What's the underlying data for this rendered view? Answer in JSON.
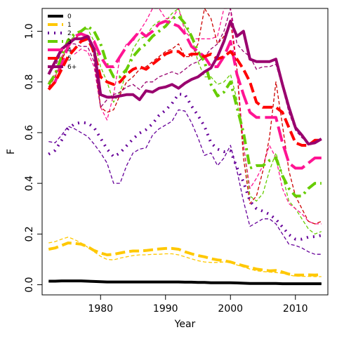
{
  "chart_data": {
    "type": "line",
    "title": "",
    "xlabel": "Year",
    "ylabel": "F",
    "xlim": [
      1971,
      2015
    ],
    "ylim": [
      -0.04,
      1.09
    ],
    "xticks": [
      1980,
      1990,
      2000,
      2010
    ],
    "yticks": [
      0.0,
      0.2,
      0.4,
      0.6,
      0.8,
      1.0
    ],
    "x": [
      1972,
      1973,
      1974,
      1975,
      1976,
      1977,
      1978,
      1979,
      1980,
      1981,
      1982,
      1983,
      1984,
      1985,
      1986,
      1987,
      1988,
      1989,
      1990,
      1991,
      1992,
      1993,
      1994,
      1995,
      1996,
      1997,
      1998,
      1999,
      2000,
      2001,
      2002,
      2003,
      2004,
      2005,
      2006,
      2007,
      2008,
      2009,
      2010,
      2011,
      2012,
      2013,
      2014
    ],
    "legend": {
      "position": "top-left",
      "entries": [
        "0",
        "1",
        "2",
        "3",
        "4",
        "5",
        "6+"
      ]
    },
    "series": [
      {
        "name": "0",
        "color": "#000000",
        "width": 4,
        "dash": "solid",
        "values": [
          0.014,
          0.014,
          0.015,
          0.015,
          0.015,
          0.015,
          0.014,
          0.013,
          0.012,
          0.011,
          0.011,
          0.011,
          0.011,
          0.011,
          0.011,
          0.011,
          0.011,
          0.011,
          0.011,
          0.011,
          0.011,
          0.01,
          0.01,
          0.009,
          0.009,
          0.008,
          0.008,
          0.008,
          0.008,
          0.007,
          0.006,
          0.005,
          0.005,
          0.005,
          0.005,
          0.005,
          0.004,
          0.004,
          0.004,
          0.004,
          0.004,
          0.004,
          0.004
        ]
      },
      {
        "name": "0 (thin)",
        "color": "#000000",
        "width": 1.3,
        "dash": "dashed",
        "values": [
          0.013,
          0.013,
          0.015,
          0.016,
          0.016,
          0.015,
          0.014,
          0.013,
          0.012,
          0.011,
          0.011,
          0.011,
          0.011,
          0.011,
          0.011,
          0.011,
          0.011,
          0.011,
          0.011,
          0.011,
          0.011,
          0.01,
          0.01,
          0.009,
          0.009,
          0.008,
          0.008,
          0.008,
          0.008,
          0.007,
          0.006,
          0.005,
          0.005,
          0.005,
          0.005,
          0.005,
          0.004,
          0.004,
          0.004,
          0.004,
          0.004,
          0.004,
          0.004
        ]
      },
      {
        "name": "1",
        "color": "#ffc800",
        "width": 4,
        "dash": "dashed",
        "values": [
          0.14,
          0.145,
          0.155,
          0.165,
          0.163,
          0.16,
          0.15,
          0.135,
          0.125,
          0.118,
          0.12,
          0.125,
          0.13,
          0.133,
          0.133,
          0.135,
          0.138,
          0.141,
          0.143,
          0.143,
          0.14,
          0.13,
          0.122,
          0.115,
          0.11,
          0.103,
          0.098,
          0.095,
          0.09,
          0.082,
          0.075,
          0.068,
          0.062,
          0.058,
          0.055,
          0.056,
          0.05,
          0.042,
          0.038,
          0.038,
          0.039,
          0.038,
          0.04
        ]
      },
      {
        "name": "1 (thin)",
        "color": "#ffc800",
        "width": 1.3,
        "dash": "dashed",
        "values": [
          0.165,
          0.17,
          0.18,
          0.188,
          0.178,
          0.165,
          0.148,
          0.13,
          0.112,
          0.1,
          0.098,
          0.105,
          0.11,
          0.115,
          0.118,
          0.118,
          0.12,
          0.12,
          0.122,
          0.122,
          0.118,
          0.11,
          0.102,
          0.095,
          0.09,
          0.088,
          0.088,
          0.09,
          0.088,
          0.078,
          0.07,
          0.062,
          0.055,
          0.052,
          0.05,
          0.048,
          0.045,
          0.038,
          0.034,
          0.033,
          0.033,
          0.032,
          0.032
        ]
      },
      {
        "name": "2",
        "color": "#660099",
        "width": 4,
        "dash": "dotted",
        "values": [
          0.515,
          0.53,
          0.57,
          0.615,
          0.635,
          0.64,
          0.638,
          0.62,
          0.578,
          0.535,
          0.505,
          0.52,
          0.548,
          0.575,
          0.598,
          0.612,
          0.635,
          0.668,
          0.688,
          0.715,
          0.752,
          0.75,
          0.705,
          0.668,
          0.625,
          0.56,
          0.535,
          0.525,
          0.528,
          0.462,
          0.405,
          0.33,
          0.3,
          0.29,
          0.278,
          0.258,
          0.228,
          0.198,
          0.18,
          0.18,
          0.188,
          0.19,
          0.195
        ]
      },
      {
        "name": "2 (thin)",
        "color": "#660099",
        "width": 1.3,
        "dash": "dashed",
        "values": [
          0.565,
          0.56,
          0.59,
          0.625,
          0.615,
          0.6,
          0.585,
          0.555,
          0.52,
          0.48,
          0.4,
          0.4,
          0.47,
          0.52,
          0.535,
          0.54,
          0.59,
          0.615,
          0.63,
          0.645,
          0.69,
          0.685,
          0.64,
          0.58,
          0.51,
          0.52,
          0.47,
          0.5,
          0.55,
          0.45,
          0.33,
          0.23,
          0.245,
          0.26,
          0.26,
          0.24,
          0.2,
          0.16,
          0.155,
          0.145,
          0.13,
          0.12,
          0.12
        ]
      },
      {
        "name": "3",
        "color": "#66cc00",
        "width": 4,
        "dash": "dashdot",
        "values": [
          0.79,
          0.83,
          0.9,
          0.965,
          0.99,
          1.0,
          1.02,
          1.0,
          0.95,
          0.87,
          0.82,
          0.82,
          0.85,
          0.9,
          0.93,
          0.95,
          0.98,
          1.0,
          1.02,
          1.05,
          1.06,
          1.03,
          0.98,
          0.92,
          0.88,
          0.79,
          0.745,
          0.76,
          0.8,
          0.7,
          0.6,
          0.46,
          0.47,
          0.47,
          0.49,
          0.5,
          0.43,
          0.38,
          0.35,
          0.35,
          0.38,
          0.4,
          0.4
        ]
      },
      {
        "name": "3 (thin)",
        "color": "#66cc00",
        "width": 1.3,
        "dash": "dashed",
        "values": [
          0.8,
          0.82,
          0.89,
          0.96,
          0.98,
          1.0,
          1.01,
          0.96,
          0.86,
          0.8,
          0.72,
          0.76,
          0.84,
          0.93,
          0.97,
          0.98,
          1.02,
          1.04,
          1.04,
          1.07,
          1.09,
          1.02,
          0.98,
          0.88,
          0.82,
          0.82,
          0.79,
          0.8,
          0.83,
          0.73,
          0.55,
          0.35,
          0.33,
          0.36,
          0.45,
          0.52,
          0.43,
          0.33,
          0.3,
          0.26,
          0.22,
          0.2,
          0.21
        ]
      },
      {
        "name": "4",
        "color": "#ff1493",
        "width": 4,
        "dash": "longdash",
        "values": [
          0.77,
          0.8,
          0.87,
          0.94,
          0.98,
          0.99,
          0.98,
          0.96,
          0.9,
          0.86,
          0.86,
          0.9,
          0.94,
          0.97,
          1.0,
          0.98,
          1.0,
          1.03,
          1.04,
          1.03,
          1.02,
          0.99,
          0.94,
          0.92,
          0.9,
          0.86,
          0.86,
          0.9,
          0.96,
          0.83,
          0.75,
          0.68,
          0.66,
          0.66,
          0.66,
          0.66,
          0.56,
          0.48,
          0.46,
          0.46,
          0.48,
          0.5,
          0.5
        ]
      },
      {
        "name": "4 (thin)",
        "color": "#ff1493",
        "width": 1.3,
        "dash": "dashed",
        "values": [
          0.8,
          0.83,
          0.9,
          0.94,
          0.91,
          0.93,
          0.92,
          0.86,
          0.7,
          0.65,
          0.75,
          0.9,
          0.95,
          0.96,
          1.0,
          1.04,
          1.09,
          1.09,
          1.05,
          1.05,
          1.09,
          1.0,
          0.97,
          0.97,
          0.97,
          0.97,
          0.98,
          1.09,
          1.09,
          0.85,
          0.55,
          0.38,
          0.42,
          0.47,
          0.55,
          0.5,
          0.38,
          0.32,
          0.3,
          0.28,
          0.25,
          0.24,
          0.24
        ]
      },
      {
        "name": "5",
        "color": "#ff0000",
        "width": 4,
        "dash": "dashed",
        "values": [
          0.77,
          0.8,
          0.85,
          0.9,
          0.93,
          0.96,
          0.97,
          0.92,
          0.82,
          0.8,
          0.79,
          0.8,
          0.83,
          0.85,
          0.86,
          0.85,
          0.87,
          0.89,
          0.91,
          0.92,
          0.92,
          0.9,
          0.91,
          0.91,
          0.9,
          0.91,
          0.89,
          0.9,
          0.92,
          0.89,
          0.85,
          0.8,
          0.72,
          0.7,
          0.7,
          0.7,
          0.68,
          0.62,
          0.56,
          0.55,
          0.55,
          0.57,
          0.57
        ]
      },
      {
        "name": "5 (thin)",
        "color": "#cc0000",
        "width": 1.3,
        "dash": "dashed",
        "values": [
          0.78,
          0.82,
          0.88,
          0.95,
          0.97,
          0.99,
          0.98,
          0.9,
          0.7,
          0.68,
          0.69,
          0.75,
          0.8,
          0.82,
          0.85,
          0.86,
          0.88,
          0.9,
          0.92,
          0.93,
          0.95,
          0.9,
          0.9,
          0.95,
          1.09,
          1.05,
          0.95,
          0.98,
          1.04,
          0.85,
          0.5,
          0.32,
          0.35,
          0.45,
          0.58,
          0.8,
          0.63,
          0.45,
          0.35,
          0.3,
          0.25,
          0.24,
          0.25
        ]
      },
      {
        "name": "6+",
        "color": "#99006e",
        "width": 4,
        "dash": "solid",
        "values": [
          0.83,
          0.88,
          0.93,
          0.95,
          0.97,
          0.97,
          0.98,
          0.93,
          0.75,
          0.74,
          0.74,
          0.745,
          0.75,
          0.75,
          0.73,
          0.765,
          0.76,
          0.775,
          0.78,
          0.79,
          0.775,
          0.795,
          0.81,
          0.82,
          0.84,
          0.855,
          0.9,
          0.96,
          1.04,
          0.98,
          1.0,
          0.89,
          0.88,
          0.88,
          0.88,
          0.89,
          0.79,
          0.7,
          0.62,
          0.59,
          0.555,
          0.56,
          0.575
        ]
      },
      {
        "name": "6+ (thin)",
        "color": "#99006e",
        "width": 1.3,
        "dash": "dashed",
        "values": [
          0.84,
          0.86,
          0.92,
          0.95,
          0.95,
          0.94,
          0.94,
          0.88,
          0.7,
          0.73,
          0.75,
          0.76,
          0.78,
          0.79,
          0.77,
          0.8,
          0.8,
          0.82,
          0.83,
          0.84,
          0.83,
          0.85,
          0.87,
          0.88,
          0.9,
          0.93,
          0.95,
          1.0,
          1.09,
          0.95,
          0.92,
          0.9,
          0.85,
          0.86,
          0.86,
          0.87,
          0.78,
          0.68,
          0.61,
          0.58,
          0.56,
          0.565,
          0.575
        ]
      }
    ]
  }
}
